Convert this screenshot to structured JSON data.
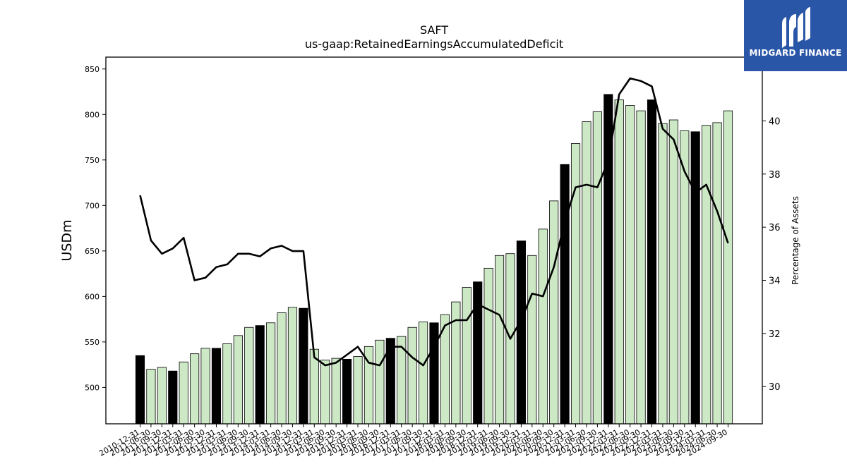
{
  "chart_data": {
    "type": "bar+line",
    "title": "SAFT",
    "subtitle": "us-gaap:RetainedEarningsAccumulatedDeficit",
    "ylabel": "USDm",
    "y2label": "Percentage of Assets",
    "ylim": [
      460,
      863
    ],
    "y2lim": [
      28.6,
      42.4
    ],
    "yticks": [
      500,
      550,
      600,
      650,
      700,
      750,
      800,
      850
    ],
    "y2ticks": [
      30,
      32,
      34,
      36,
      38,
      40
    ],
    "colors": {
      "bar_annual": "#000000",
      "bar_quarter": "#cce8c5",
      "bar_edge": "#000000",
      "line": "#000000"
    },
    "categories": [
      "2010-12-31",
      "2011-06-30",
      "2011-09-30",
      "2011-12-31",
      "2012-03-31",
      "2012-06-30",
      "2012-09-30",
      "2012-12-31",
      "2013-03-31",
      "2013-06-30",
      "2013-09-30",
      "2013-12-31",
      "2014-03-31",
      "2014-06-30",
      "2014-09-30",
      "2014-12-31",
      "2015-03-31",
      "2015-06-30",
      "2015-09-30",
      "2015-12-31",
      "2016-03-31",
      "2016-06-30",
      "2016-09-30",
      "2016-12-31",
      "2017-03-31",
      "2017-06-30",
      "2017-09-30",
      "2017-12-31",
      "2018-03-31",
      "2018-06-30",
      "2018-09-30",
      "2018-12-31",
      "2019-03-31",
      "2019-06-30",
      "2019-09-30",
      "2019-12-31",
      "2020-03-31",
      "2020-06-30",
      "2020-09-30",
      "2020-12-31",
      "2021-03-31",
      "2021-06-30",
      "2021-09-30",
      "2021-12-31",
      "2022-03-31",
      "2022-06-30",
      "2022-09-30",
      "2022-12-31",
      "2023-03-31",
      "2023-06-30",
      "2023-09-30",
      "2023-12-31",
      "2024-03-31",
      "2024-06-30",
      "2024-09-30"
    ],
    "series": [
      {
        "kind": "bar",
        "axis": "left",
        "values": [
          535,
          520,
          522,
          518,
          528,
          537,
          543,
          543,
          548,
          557,
          566,
          568,
          571,
          582,
          588,
          587,
          542,
          530,
          532,
          531,
          534,
          545,
          552,
          554,
          556,
          566,
          572,
          571,
          580,
          594,
          610,
          616,
          631,
          645,
          647,
          661,
          645,
          674,
          705,
          745,
          768,
          792,
          803,
          822,
          816,
          810,
          804,
          816,
          790,
          794,
          782,
          781,
          788,
          791,
          804
        ],
        "annual": [
          true,
          false,
          false,
          true,
          false,
          false,
          false,
          true,
          false,
          false,
          false,
          true,
          false,
          false,
          false,
          true,
          false,
          false,
          false,
          true,
          false,
          false,
          false,
          true,
          false,
          false,
          false,
          true,
          false,
          false,
          false,
          true,
          false,
          false,
          false,
          true,
          false,
          false,
          false,
          true,
          false,
          false,
          false,
          true,
          false,
          false,
          false,
          true,
          false,
          false,
          false,
          true,
          false,
          false,
          false
        ]
      },
      {
        "kind": "line",
        "axis": "right",
        "values": [
          37.2,
          35.5,
          35.0,
          35.2,
          35.6,
          34.0,
          34.1,
          34.5,
          34.6,
          35.0,
          35.0,
          34.9,
          35.2,
          35.3,
          35.1,
          35.1,
          31.1,
          30.8,
          30.9,
          31.2,
          31.5,
          30.9,
          30.8,
          31.5,
          31.5,
          31.1,
          30.8,
          31.5,
          32.3,
          32.5,
          32.5,
          33.1,
          32.9,
          32.7,
          31.8,
          32.5,
          33.5,
          33.4,
          34.5,
          36.2,
          37.5,
          37.6,
          37.5,
          38.5,
          41.0,
          41.6,
          41.5,
          41.3,
          39.7,
          39.3,
          38.1,
          37.3,
          37.6,
          36.6,
          35.4
        ]
      }
    ]
  },
  "brand": {
    "name": "MIDGARD FINANCE",
    "logo": "midgard-logo-icon"
  }
}
